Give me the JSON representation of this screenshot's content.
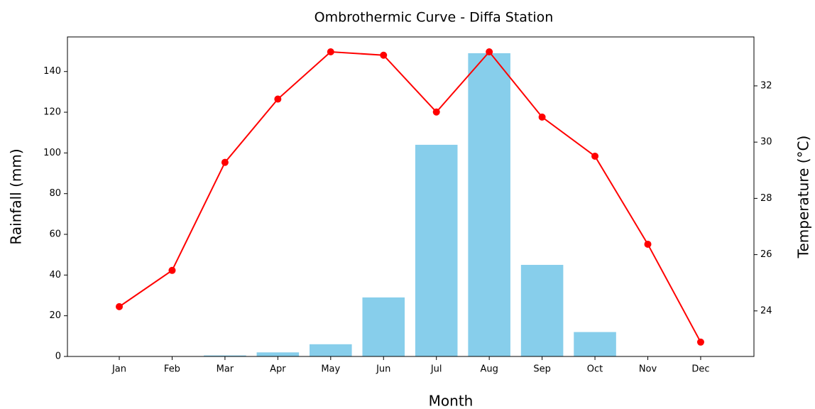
{
  "chart_data": {
    "type": "bar",
    "title": "Ombrothermic Curve - Diffa Station",
    "x_label": "Month",
    "y_label": "Rainfall (mm)",
    "y2_label": "Temperature (°C)",
    "categories": [
      "Jan",
      "Feb",
      "Mar",
      "Apr",
      "May",
      "Jun",
      "Jul",
      "Aug",
      "Sep",
      "Oct",
      "Nov",
      "Dec"
    ],
    "series": [
      {
        "type": "bar",
        "color": "#87ceeb",
        "values": [
          0,
          0,
          0.5,
          2,
          6,
          29,
          104,
          149,
          45,
          12,
          0,
          0
        ]
      },
      {
        "type": "line",
        "axis": "y2",
        "color": "#ff0000",
        "values": [
          24.15,
          25.44,
          29.28,
          31.53,
          33.21,
          33.09,
          31.07,
          33.21,
          30.89,
          29.5,
          26.37,
          22.89
        ]
      }
    ],
    "ylim": [
      0,
      157
    ],
    "yticks": [
      0,
      20,
      40,
      60,
      80,
      100,
      120,
      140
    ],
    "y2lim": [
      22.38,
      33.74
    ],
    "y2ticks": [
      24,
      26,
      28,
      30,
      32
    ]
  }
}
